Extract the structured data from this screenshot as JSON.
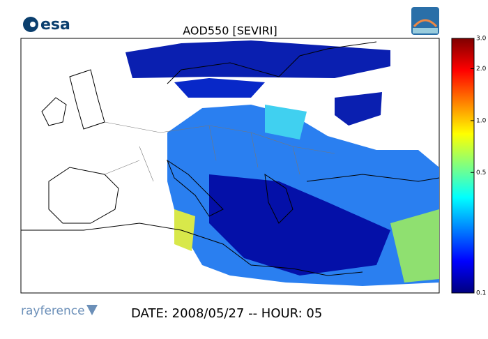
{
  "header": {
    "logo_text": "esa",
    "title": "AOD550   [SEVIRI]"
  },
  "colorbar": {
    "scale": "log",
    "lim": [
      0.1,
      3
    ],
    "ticks": [
      {
        "value": 3,
        "label": "3.0"
      },
      {
        "value": 2,
        "label": "2.0"
      },
      {
        "value": 1,
        "label": "1.0"
      },
      0.5,
      0.1
    ],
    "colormap": [
      "#00007f",
      "#0000ff",
      "#0080ff",
      "#00ffff",
      "#80ff80",
      "#ffff00",
      "#ff8000",
      "#ff0000",
      "#7f0000"
    ]
  },
  "footer": {
    "brand": "rayference",
    "caption": "DATE: 2008/05/27 -- HOUR: 05"
  }
}
